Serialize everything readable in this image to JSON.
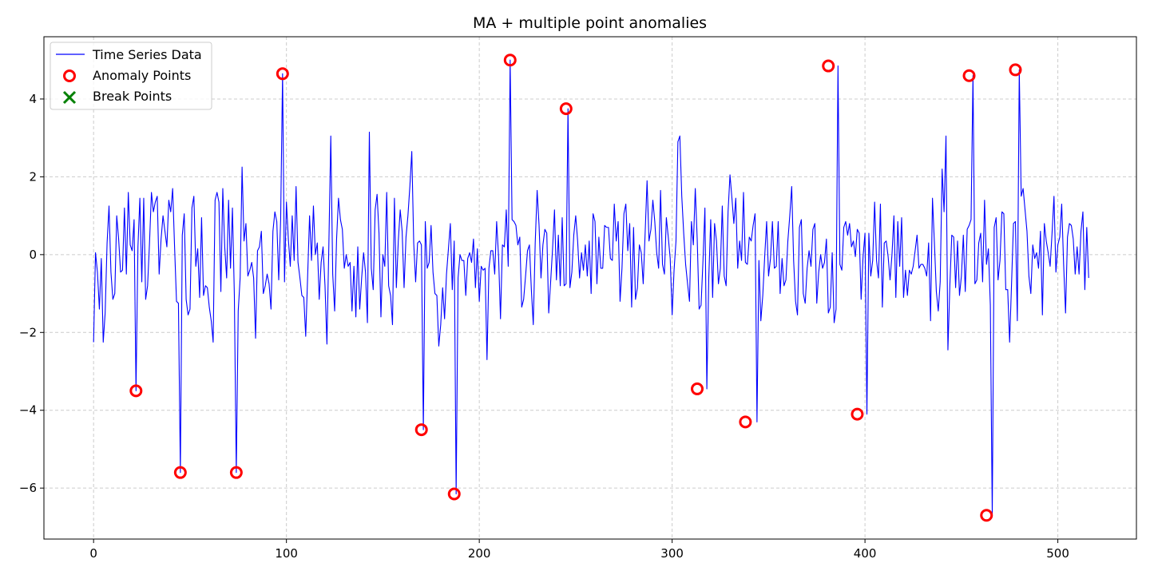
{
  "chart_data": {
    "type": "line",
    "title": "MA + multiple point anomalies",
    "xlabel": "",
    "ylabel": "",
    "xlim": [
      -25.75,
      540.75
    ],
    "ylim": [
      -7.31,
      5.6
    ],
    "x_ticks": [
      0,
      100,
      200,
      300,
      400,
      500
    ],
    "y_ticks": [
      -6,
      -4,
      -2,
      0,
      2,
      4
    ],
    "grid": true,
    "legend_position": "top-left",
    "colors": {
      "series": "#0000ff",
      "anomaly": "#ff0000",
      "break": "#008000",
      "grid": "#cccccc"
    },
    "series": [
      {
        "name": "Time Series Data",
        "x_start": 0,
        "x_step": 1,
        "values": [
          -2.25,
          0.05,
          -0.45,
          -1.4,
          -0.1,
          -2.25,
          -1.5,
          0.3,
          1.25,
          -0.45,
          -1.15,
          -1.0,
          1.0,
          0.4,
          -0.45,
          -0.4,
          1.2,
          -0.5,
          1.6,
          0.25,
          0.1,
          0.9,
          -3.5,
          0.2,
          1.45,
          -0.7,
          1.45,
          -1.15,
          -0.8,
          0.3,
          1.6,
          1.1,
          1.35,
          1.5,
          -0.5,
          0.4,
          1.0,
          0.6,
          0.2,
          1.4,
          1.1,
          1.7,
          0.2,
          -1.2,
          -1.25,
          -5.6,
          0.5,
          1.05,
          -1.15,
          -1.55,
          -1.4,
          1.2,
          1.5,
          -0.3,
          0.15,
          -1.1,
          0.95,
          -1.05,
          -0.8,
          -0.85,
          -1.35,
          -1.7,
          -2.25,
          1.4,
          1.6,
          1.35,
          -0.95,
          1.7,
          0.2,
          -0.6,
          1.4,
          -0.35,
          1.2,
          -1.05,
          -5.6,
          -1.45,
          -0.6,
          2.25,
          0.35,
          0.8,
          -0.55,
          -0.4,
          -0.2,
          -0.6,
          -2.15,
          0.1,
          0.2,
          0.6,
          -1.0,
          -0.8,
          -0.5,
          -0.75,
          -1.4,
          0.6,
          1.1,
          0.85,
          -0.65,
          0.9,
          4.65,
          -0.7,
          1.35,
          0.4,
          -0.3,
          1.0,
          -0.15,
          1.75,
          -0.2,
          -0.6,
          -1.05,
          -1.1,
          -2.1,
          -0.55,
          1.0,
          -0.15,
          1.25,
          0.0,
          0.3,
          -1.15,
          -0.2,
          0.2,
          -0.8,
          -2.3,
          0.25,
          3.05,
          -0.5,
          -1.45,
          0.4,
          1.45,
          0.9,
          0.65,
          -0.35,
          0.0,
          -0.3,
          -0.2,
          -1.45,
          -0.3,
          -1.6,
          0.2,
          -1.4,
          -0.6,
          0.05,
          -0.45,
          -1.75,
          3.15,
          -0.35,
          -0.9,
          1.15,
          1.55,
          0.55,
          -1.6,
          0.0,
          -0.3,
          1.6,
          -0.8,
          -1.05,
          -1.8,
          1.45,
          -0.85,
          0.35,
          1.15,
          0.6,
          -0.85,
          0.45,
          1.0,
          1.75,
          2.65,
          0.3,
          -0.7,
          0.3,
          0.35,
          0.25,
          -4.5,
          0.85,
          -0.35,
          -0.2,
          0.75,
          -0.45,
          -1.0,
          -1.05,
          -2.35,
          -1.8,
          -0.85,
          -1.65,
          -0.5,
          0.15,
          0.8,
          -0.9,
          0.35,
          -6.15,
          -0.6,
          0.0,
          -0.15,
          -0.15,
          -1.05,
          -0.1,
          0.05,
          -0.2,
          0.4,
          -0.85,
          0.15,
          -1.2,
          -0.3,
          -0.4,
          -0.35,
          -2.7,
          -0.35,
          0.1,
          0.1,
          -0.5,
          0.85,
          -0.05,
          -1.65,
          0.25,
          0.2,
          1.15,
          -0.3,
          5.0,
          0.9,
          0.85,
          0.75,
          0.25,
          0.45,
          -1.35,
          -1.15,
          -0.55,
          0.1,
          0.25,
          -0.9,
          -1.8,
          0.3,
          1.65,
          0.75,
          -0.6,
          0.25,
          0.65,
          0.55,
          -1.5,
          -0.7,
          0.15,
          1.15,
          -0.65,
          0.5,
          -0.8,
          0.95,
          -0.8,
          -0.75,
          3.75,
          -0.85,
          -0.45,
          0.5,
          1.0,
          0.35,
          -0.6,
          0.05,
          -0.4,
          0.25,
          -0.55,
          0.35,
          -1.0,
          1.05,
          0.85,
          -0.75,
          0.45,
          -0.35,
          -0.35,
          0.75,
          0.7,
          0.7,
          -0.1,
          -0.15,
          1.3,
          0.35,
          0.85,
          -1.2,
          -0.35,
          1.05,
          1.3,
          0.1,
          0.8,
          -1.35,
          0.7,
          -1.15,
          -0.85,
          0.25,
          0.05,
          -0.75,
          0.55,
          1.9,
          0.35,
          0.65,
          1.4,
          0.85,
          0.05,
          -0.35,
          1.65,
          -0.25,
          -0.5,
          0.95,
          0.45,
          -0.1,
          -1.55,
          -0.4,
          0.35,
          2.9,
          3.05,
          1.5,
          0.55,
          -0.25,
          -0.75,
          -1.2,
          0.85,
          0.25,
          1.7,
          0.4,
          -1.4,
          -1.3,
          -0.15,
          1.2,
          -3.45,
          -0.6,
          0.9,
          -1.1,
          0.8,
          0.35,
          -0.75,
          -0.35,
          1.25,
          -0.55,
          -0.8,
          1.1,
          2.05,
          1.45,
          0.8,
          1.45,
          -0.35,
          0.35,
          -0.15,
          1.6,
          -0.2,
          -0.25,
          0.45,
          0.35,
          0.75,
          1.05,
          -4.3,
          -0.15,
          -1.7,
          -1.05,
          -0.05,
          0.85,
          -0.55,
          -0.1,
          0.85,
          -0.35,
          -0.3,
          0.85,
          -1.0,
          -0.1,
          -0.8,
          -0.65,
          0.35,
          1.0,
          1.75,
          -0.15,
          -1.2,
          -1.55,
          0.7,
          0.9,
          -1.0,
          -1.25,
          -0.35,
          0.1,
          -0.3,
          0.65,
          0.8,
          -1.25,
          -0.45,
          0.0,
          -0.35,
          -0.2,
          0.4,
          -1.5,
          -1.35,
          0.05,
          -1.75,
          -1.4,
          4.85,
          -0.25,
          -0.4,
          0.7,
          0.85,
          0.5,
          0.8,
          0.2,
          0.35,
          -0.05,
          0.65,
          0.55,
          -1.15,
          -0.05,
          0.55,
          -4.1,
          0.55,
          -0.55,
          -0.15,
          1.35,
          -0.15,
          -0.6,
          1.3,
          -1.35,
          0.3,
          0.35,
          -0.05,
          -0.65,
          0.0,
          1.0,
          -1.1,
          0.85,
          -0.3,
          0.95,
          -1.1,
          -0.4,
          -1.05,
          -0.4,
          -0.5,
          -0.3,
          0.1,
          0.5,
          -0.35,
          -0.25,
          -0.25,
          -0.35,
          -0.55,
          0.3,
          -1.7,
          1.45,
          0.3,
          -0.95,
          -1.45,
          -0.7,
          2.2,
          1.1,
          3.05,
          -2.45,
          -0.8,
          0.5,
          0.45,
          -0.85,
          0.35,
          -1.05,
          -0.55,
          0.5,
          -0.95,
          0.65,
          0.75,
          0.9,
          4.6,
          -0.75,
          -0.65,
          0.3,
          0.55,
          -0.7,
          1.4,
          -0.25,
          0.15,
          -1.3,
          -6.7,
          0.7,
          0.95,
          -0.65,
          -0.15,
          1.1,
          1.05,
          -0.9,
          -0.9,
          -2.25,
          -0.75,
          0.8,
          0.85,
          -1.7,
          4.75,
          1.5,
          1.7,
          1.15,
          0.6,
          -0.55,
          -1.0,
          0.25,
          -0.1,
          0.05,
          -0.35,
          0.6,
          -1.55,
          0.8,
          0.35,
          0.05,
          -0.3,
          0.55,
          1.5,
          -0.45,
          0.25,
          0.45,
          1.3,
          -0.25,
          -1.5,
          0.45,
          0.8,
          0.75,
          0.4,
          -0.5,
          0.2,
          -0.5,
          0.6,
          1.1,
          -0.9,
          0.7,
          -0.6
        ]
      }
    ],
    "anomalies": {
      "name": "Anomaly Points",
      "x": [
        22,
        45,
        74,
        98,
        170,
        187,
        216,
        245,
        313,
        338,
        381,
        396,
        454,
        463,
        478
      ],
      "y": [
        -3.5,
        -5.6,
        -5.6,
        4.65,
        -4.5,
        -6.15,
        5.0,
        3.75,
        -3.45,
        -4.3,
        4.85,
        -4.1,
        4.6,
        -6.7,
        4.75
      ]
    },
    "break_points": {
      "name": "Break Points",
      "x": [],
      "y": []
    }
  }
}
